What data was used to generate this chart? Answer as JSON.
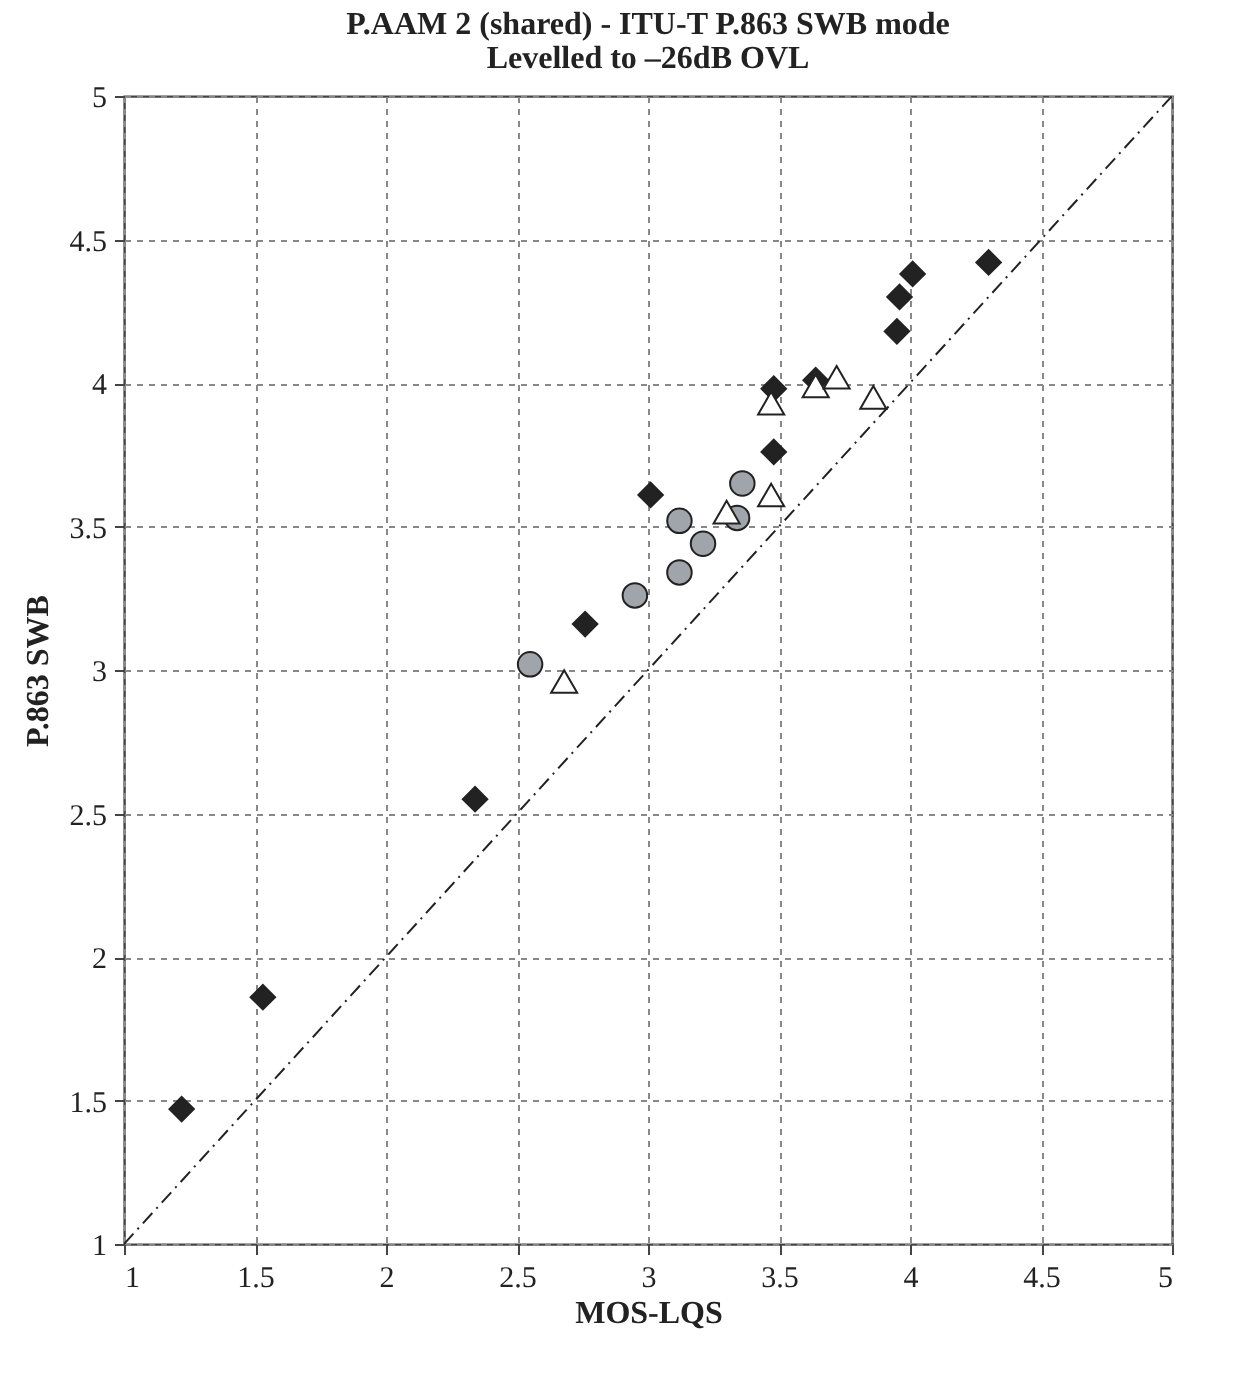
{
  "chart_data": {
    "type": "scatter",
    "title": "P.AAM 2 (shared) - ITU-T P.863 SWB mode",
    "subtitle": "Levelled to –26dB OVL",
    "xlabel": "MOS-LQS",
    "ylabel": "P.863 SWB",
    "xlim": [
      1,
      5
    ],
    "ylim": [
      1,
      5
    ],
    "xticks": [
      1,
      1.5,
      2,
      2.5,
      3,
      3.5,
      4,
      4.5,
      5
    ],
    "yticks": [
      1,
      1.5,
      2,
      2.5,
      3,
      3.5,
      4,
      4.5,
      5
    ],
    "grid": true,
    "series": [
      {
        "type": "line",
        "color": "#222222",
        "line_style": "dashed",
        "marker": "none",
        "x": [
          1,
          5
        ],
        "values": [
          1,
          5
        ]
      },
      {
        "color": "#222222",
        "marker": "diamond",
        "x": [
          1.22,
          1.53,
          2.34,
          2.76,
          3.01,
          3.48,
          3.48,
          3.64,
          3.95,
          3.96,
          4.01,
          4.3
        ],
        "values": [
          1.47,
          1.86,
          2.55,
          3.16,
          3.61,
          3.76,
          3.98,
          4.01,
          4.18,
          4.3,
          4.38,
          4.42
        ]
      },
      {
        "color": "#a0a4ab",
        "marker": "circle",
        "x": [
          2.55,
          2.95,
          3.12,
          3.12,
          3.21,
          3.34,
          3.36
        ],
        "values": [
          3.02,
          3.26,
          3.34,
          3.52,
          3.44,
          3.53,
          3.65
        ]
      },
      {
        "color": "#ffffff",
        "marker": "triangle",
        "x": [
          2.68,
          3.3,
          3.47,
          3.47,
          3.64,
          3.72,
          3.86
        ],
        "values": [
          2.96,
          3.55,
          3.61,
          3.93,
          3.99,
          4.02,
          3.95
        ]
      }
    ]
  }
}
